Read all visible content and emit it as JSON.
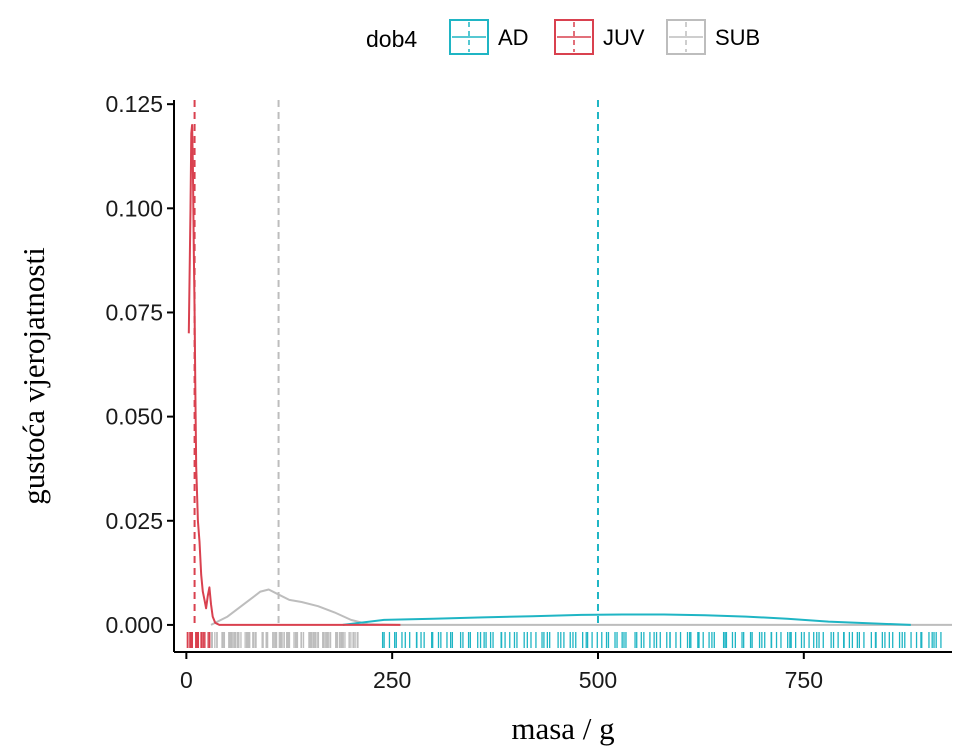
{
  "chart_data": {
    "type": "area",
    "xlabel": "masa / g",
    "ylabel": "gustoća vjerojatnosti",
    "xlim": [
      -15,
      930
    ],
    "ylim": [
      -0.0065,
      0.126
    ],
    "x_ticks": [
      0,
      250,
      500,
      750
    ],
    "x_tick_labels": [
      "0",
      "250",
      "500",
      "750"
    ],
    "y_ticks": [
      0,
      0.025,
      0.05,
      0.075,
      0.1,
      0.125
    ],
    "y_tick_labels": [
      "0.000",
      "0.025",
      "0.050",
      "0.075",
      "0.100",
      "0.125"
    ],
    "grid": false,
    "legend": {
      "title": "dob4",
      "position": "top",
      "entries": [
        "AD",
        "JUV",
        "SUB"
      ]
    },
    "colors": {
      "AD": "#1fb5c4",
      "JUV": "#d9414f",
      "SUB": "#bdbdbd"
    },
    "series": [
      {
        "name": "AD",
        "density_x": [
          190,
          240,
          300,
          360,
          420,
          480,
          530,
          580,
          630,
          680,
          730,
          780,
          880
        ],
        "density_y": [
          0.0,
          0.0012,
          0.0015,
          0.0018,
          0.0021,
          0.0024,
          0.0025,
          0.0025,
          0.0023,
          0.002,
          0.0015,
          0.0008,
          0.0
        ],
        "mean_line_x": 500,
        "rug_range": [
          235,
          920
        ]
      },
      {
        "name": "JUV",
        "density_x": [
          3,
          5,
          6,
          7,
          8,
          9,
          10,
          11,
          12,
          14,
          16,
          18,
          20,
          22,
          24,
          26,
          28,
          30,
          32,
          35,
          40,
          60,
          100,
          200,
          260
        ],
        "density_y": [
          0.07,
          0.1,
          0.118,
          0.12,
          0.11,
          0.09,
          0.075,
          0.055,
          0.038,
          0.025,
          0.02,
          0.012,
          0.008,
          0.006,
          0.004,
          0.007,
          0.009,
          0.005,
          0.002,
          0.0005,
          0.0,
          0.0,
          0.0,
          0.0,
          0.0
        ],
        "mean_line_x": 10,
        "rug_range": [
          0,
          30
        ]
      },
      {
        "name": "SUB",
        "density_x": [
          30,
          50,
          70,
          90,
          100,
          110,
          125,
          140,
          160,
          180,
          200,
          220,
          260,
          400,
          600,
          930
        ],
        "density_y": [
          0.0,
          0.002,
          0.005,
          0.008,
          0.0085,
          0.0075,
          0.006,
          0.0055,
          0.0045,
          0.003,
          0.0012,
          0.0002,
          0.0,
          0.0,
          0.0,
          0.0
        ],
        "mean_line_x": 112,
        "rug_range": [
          25,
          210
        ]
      }
    ]
  }
}
